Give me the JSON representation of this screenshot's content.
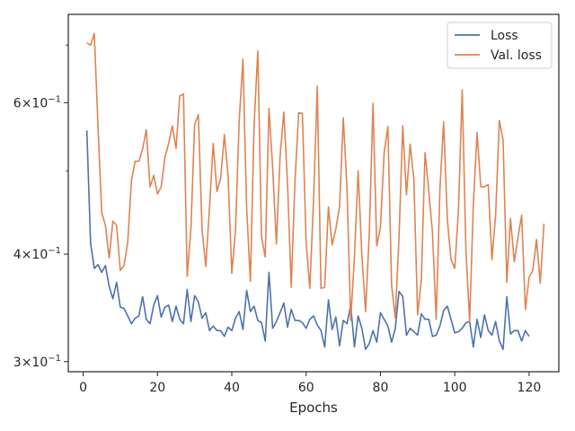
{
  "chart_data": {
    "type": "line",
    "title": "",
    "xlabel": "Epochs",
    "ylabel": "",
    "yscale": "log",
    "xlim": [
      -4,
      128
    ],
    "ylim": [
      0.292,
      0.76
    ],
    "xticks": [
      {
        "value": 0,
        "label": "0"
      },
      {
        "value": 20,
        "label": "20"
      },
      {
        "value": 40,
        "label": "40"
      },
      {
        "value": 60,
        "label": "60"
      },
      {
        "value": 80,
        "label": "80"
      },
      {
        "value": 100,
        "label": "100"
      },
      {
        "value": 120,
        "label": "120"
      }
    ],
    "yticks_major": [
      {
        "value": 0.3,
        "base": "3",
        "mult": "×",
        "pow": "10",
        "exp": "−1"
      },
      {
        "value": 0.4,
        "base": "4",
        "mult": "×",
        "pow": "10",
        "exp": "−1"
      },
      {
        "value": 0.6,
        "base": "6",
        "mult": "×",
        "pow": "10",
        "exp": "−1"
      }
    ],
    "yticks_minor": [
      0.5,
      0.7
    ],
    "grid": false,
    "legend": "top-right",
    "series": [
      {
        "name": "Loss",
        "color": "#4c72b0",
        "values": [
          0.557,
          0.412,
          0.385,
          0.389,
          0.381,
          0.388,
          0.367,
          0.355,
          0.371,
          0.347,
          0.346,
          0.339,
          0.332,
          0.337,
          0.339,
          0.357,
          0.336,
          0.332,
          0.349,
          0.358,
          0.338,
          0.347,
          0.349,
          0.334,
          0.348,
          0.336,
          0.332,
          0.364,
          0.334,
          0.358,
          0.352,
          0.337,
          0.342,
          0.326,
          0.33,
          0.326,
          0.326,
          0.321,
          0.329,
          0.326,
          0.337,
          0.343,
          0.327,
          0.363,
          0.343,
          0.348,
          0.335,
          0.333,
          0.317,
          0.381,
          0.328,
          0.334,
          0.342,
          0.351,
          0.329,
          0.345,
          0.335,
          0.335,
          0.333,
          0.328,
          0.336,
          0.339,
          0.331,
          0.326,
          0.312,
          0.354,
          0.327,
          0.338,
          0.313,
          0.335,
          0.332,
          0.349,
          0.312,
          0.339,
          0.328,
          0.31,
          0.315,
          0.326,
          0.316,
          0.342,
          0.336,
          0.33,
          0.316,
          0.328,
          0.362,
          0.357,
          0.322,
          0.328,
          0.325,
          0.322,
          0.341,
          0.336,
          0.336,
          0.321,
          0.322,
          0.33,
          0.344,
          0.348,
          0.336,
          0.324,
          0.325,
          0.328,
          0.333,
          0.334,
          0.312,
          0.336,
          0.32,
          0.34,
          0.326,
          0.322,
          0.334,
          0.317,
          0.31,
          0.357,
          0.323,
          0.326,
          0.326,
          0.317,
          0.326,
          0.321
        ]
      },
      {
        "name": "Val. loss",
        "color": "#dd8452",
        "values": [
          0.704,
          0.7,
          0.722,
          0.563,
          0.447,
          0.432,
          0.396,
          0.437,
          0.432,
          0.383,
          0.388,
          0.413,
          0.487,
          0.513,
          0.513,
          0.53,
          0.558,
          0.479,
          0.494,
          0.47,
          0.479,
          0.518,
          0.538,
          0.564,
          0.531,
          0.611,
          0.614,
          0.377,
          0.428,
          0.566,
          0.581,
          0.427,
          0.387,
          0.453,
          0.538,
          0.473,
          0.49,
          0.551,
          0.494,
          0.38,
          0.427,
          0.572,
          0.674,
          0.452,
          0.372,
          0.565,
          0.689,
          0.419,
          0.397,
          0.591,
          0.504,
          0.411,
          0.52,
          0.585,
          0.483,
          0.366,
          0.486,
          0.584,
          0.583,
          0.413,
          0.365,
          0.462,
          0.627,
          0.365,
          0.366,
          0.454,
          0.41,
          0.428,
          0.454,
          0.576,
          0.477,
          0.335,
          0.397,
          0.5,
          0.399,
          0.343,
          0.423,
          0.599,
          0.409,
          0.43,
          0.525,
          0.563,
          0.368,
          0.337,
          0.419,
          0.564,
          0.469,
          0.537,
          0.488,
          0.34,
          0.373,
          0.525,
          0.474,
          0.424,
          0.336,
          0.475,
          0.57,
          0.439,
          0.394,
          0.385,
          0.45,
          0.621,
          0.404,
          0.334,
          0.457,
          0.554,
          0.479,
          0.479,
          0.482,
          0.394,
          0.445,
          0.572,
          0.543,
          0.371,
          0.44,
          0.392,
          0.418,
          0.444,
          0.345,
          0.376,
          0.383,
          0.416,
          0.37,
          0.434
        ]
      }
    ]
  }
}
